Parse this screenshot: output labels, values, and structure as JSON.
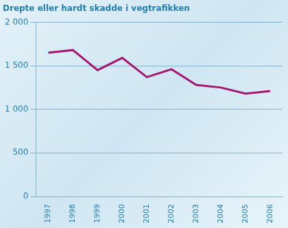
{
  "chart_data": {
    "type": "line",
    "title": "Drepte eller hardt skadde i vegtrafikken",
    "categories": [
      "1997",
      "1998",
      "1999",
      "2000",
      "2001",
      "2002",
      "2003",
      "2004",
      "2005",
      "2006"
    ],
    "values": [
      1650,
      1680,
      1450,
      1590,
      1370,
      1460,
      1280,
      1250,
      1180,
      1210
    ],
    "color": "#a3166f",
    "ylim": [
      0,
      2000
    ],
    "yticks": [
      0,
      500,
      {
        "value": 1000,
        "label": "1 000"
      },
      {
        "value": 1500,
        "label": "1 500"
      },
      {
        "value": 2000,
        "label": "2 000"
      }
    ],
    "grid": true
  }
}
